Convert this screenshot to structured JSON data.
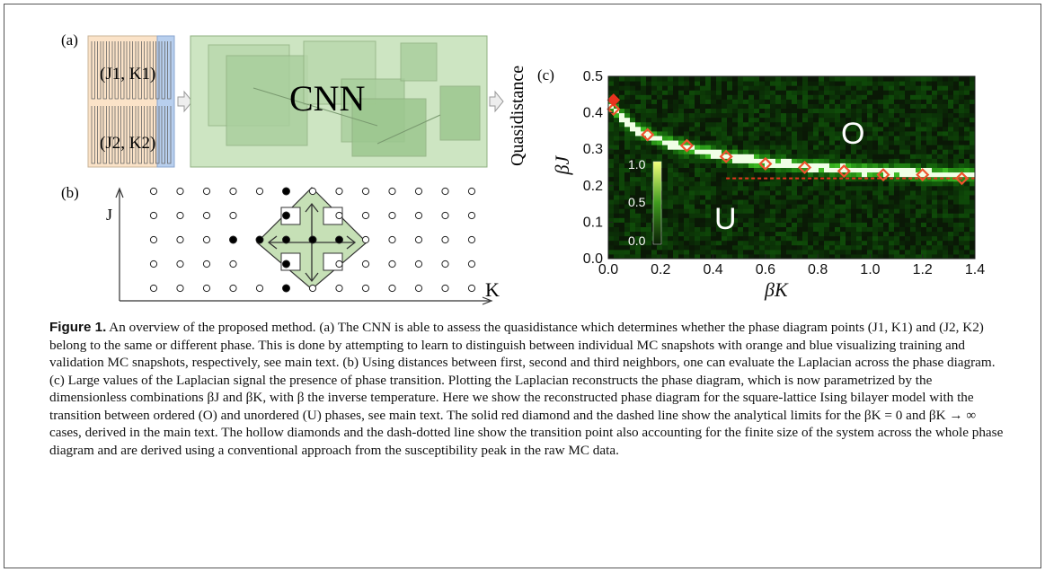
{
  "panel_a": {
    "label": "(a)",
    "pair1": "(J1, K1)",
    "pair2": "(J2, K2)",
    "network_label": "CNN",
    "output_label": "Quasidistance"
  },
  "panel_b": {
    "label": "(b)",
    "y_axis_label": "J",
    "x_axis_label": "K"
  },
  "panel_c": {
    "label": "(c)",
    "region_ordered": "O",
    "region_unordered": "U",
    "colorbar_ticks": [
      "1.0",
      "0.5",
      "0.0"
    ]
  },
  "chart_data": {
    "type": "heatmap",
    "xlabel": "βK",
    "ylabel": "βJ",
    "xlim": [
      0,
      1.4
    ],
    "ylim": [
      0,
      0.5
    ],
    "x_ticks": [
      "0.0",
      "0.2",
      "0.4",
      "0.6",
      "0.8",
      "1.0",
      "1.2",
      "1.4"
    ],
    "y_ticks": [
      "0.0",
      "0.1",
      "0.2",
      "0.3",
      "0.4",
      "0.5"
    ],
    "colorbar_range": [
      0,
      1
    ],
    "hollow_diamonds": {
      "x": [
        0.02,
        0.15,
        0.3,
        0.45,
        0.6,
        0.75,
        0.9,
        1.05,
        1.2,
        1.35
      ],
      "y": [
        0.41,
        0.34,
        0.31,
        0.28,
        0.26,
        0.25,
        0.24,
        0.23,
        0.23,
        0.22
      ]
    },
    "solid_diamond": {
      "x": 0.02,
      "y": 0.435
    },
    "dashed_line": {
      "y": 0.22,
      "x_range": [
        0.45,
        1.4
      ]
    },
    "ridge_bright_line": {
      "x": [
        0.0,
        0.05,
        0.1,
        0.15,
        0.2,
        0.3,
        0.4,
        0.5,
        0.6,
        0.75,
        0.9,
        1.05,
        1.2,
        1.35
      ],
      "y": [
        0.43,
        0.39,
        0.36,
        0.34,
        0.325,
        0.305,
        0.29,
        0.275,
        0.265,
        0.255,
        0.245,
        0.24,
        0.235,
        0.23
      ]
    }
  },
  "caption": {
    "figure_label": "Figure 1.",
    "text": "An overview of the proposed method. (a) The CNN is able to assess the quasidistance which determines whether the phase diagram points (J1, K1) and (J2, K2) belong to the same or different phase. This is done by attempting to learn to distinguish between individual MC snapshots with orange and blue visualizing training and validation MC snapshots, respectively, see main text. (b) Using distances between first, second and third neighbors, one can evaluate the Laplacian across the phase diagram. (c) Large values of the Laplacian signal the presence of phase transition. Plotting the Laplacian reconstructs the phase diagram, which is now parametrized by the dimensionless combinations βJ and βK, with β the inverse temperature. Here we show the reconstructed phase diagram for the square-lattice Ising bilayer model with the transition between ordered (O) and unordered (U) phases, see main text. The solid red diamond and the dashed line show the analytical limits for the βK = 0 and βK → ∞ cases, derived in the main text. The hollow diamonds and the dash-dotted line show the transition point also accounting for the finite size of the system across the whole phase diagram and are derived using a conventional approach from the susceptibility peak in the raw MC data."
  }
}
